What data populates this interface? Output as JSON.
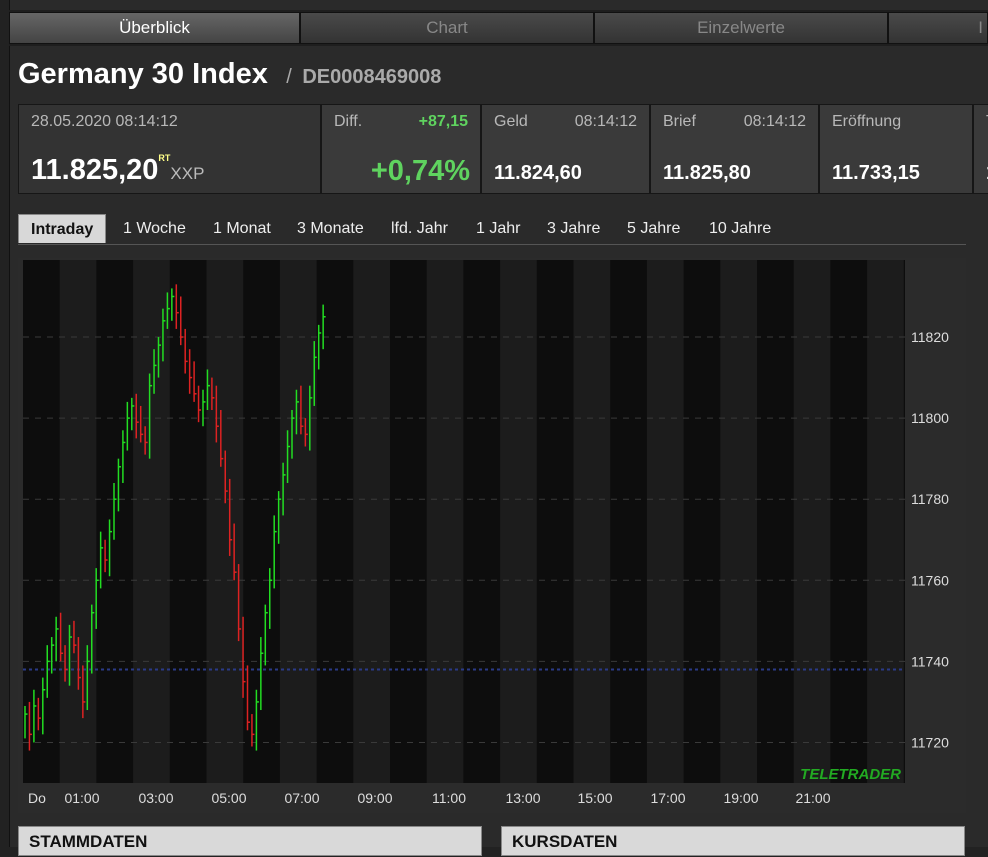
{
  "tabs": [
    {
      "label": "Überblick",
      "active": true
    },
    {
      "label": "Chart",
      "active": false
    },
    {
      "label": "Einzelwerte",
      "active": false
    },
    {
      "label": "I",
      "active": false
    }
  ],
  "instrument": {
    "name": "Germany 30 Index",
    "separator": "/",
    "isin": "DE0008469008"
  },
  "quote": {
    "datetime": "28.05.2020 08:14:12",
    "price": "11.825,20",
    "rt_badge": "RT",
    "exchange": "XXP",
    "diff_label": "Diff.",
    "diff_abs": "+87,15",
    "diff_pct": "+0,74%",
    "geld_label": "Geld",
    "geld_time": "08:14:12",
    "geld_value": "11.824,60",
    "brief_label": "Brief",
    "brief_time": "08:14:12",
    "brief_value": "11.825,80",
    "open_label": "Eröffnung",
    "open_value": "11.733,15",
    "next_label": "T",
    "next_value": "1"
  },
  "ranges": [
    "Intraday",
    "1 Woche",
    "1 Monat",
    "3 Monate",
    "lfd. Jahr",
    "1 Jahr",
    "3 Jahre",
    "5 Jahre",
    "10 Jahre"
  ],
  "active_range": "Intraday",
  "watermark": "TELETRADER",
  "sections": {
    "left": "STAMMDATEN",
    "right": "KURSDATEN"
  },
  "colors": {
    "up": "#22dd22",
    "down": "#dd2222",
    "reference_line": "#2a3a88"
  },
  "chart_data": {
    "type": "ohlc",
    "x_ticks": [
      "Do",
      "01:00",
      "03:00",
      "05:00",
      "07:00",
      "09:00",
      "11:00",
      "13:00",
      "15:00",
      "17:00",
      "19:00",
      "21:00"
    ],
    "y_ticks": [
      11820,
      11800,
      11780,
      11760,
      11740,
      11720
    ],
    "ylim": [
      11710,
      11839
    ],
    "reference_value": 11738,
    "grid": true,
    "series_close": [
      11727,
      11722,
      11729,
      11726,
      11733,
      11740,
      11744,
      11748,
      11742,
      11738,
      11746,
      11744,
      11736,
      11730,
      11740,
      11752,
      11760,
      11768,
      11765,
      11772,
      11780,
      11788,
      11794,
      11800,
      11803,
      11799,
      11796,
      11794,
      11808,
      11813,
      11818,
      11824,
      11827,
      11830,
      11826,
      11820,
      11814,
      11810,
      11806,
      11802,
      11804,
      11808,
      11805,
      11798,
      11790,
      11782,
      11770,
      11762,
      11748,
      11735,
      11725,
      11722,
      11730,
      11742,
      11752,
      11760,
      11772,
      11780,
      11786,
      11793,
      11800,
      11804,
      11798,
      11796,
      11805,
      11815,
      11821,
      11825
    ]
  }
}
